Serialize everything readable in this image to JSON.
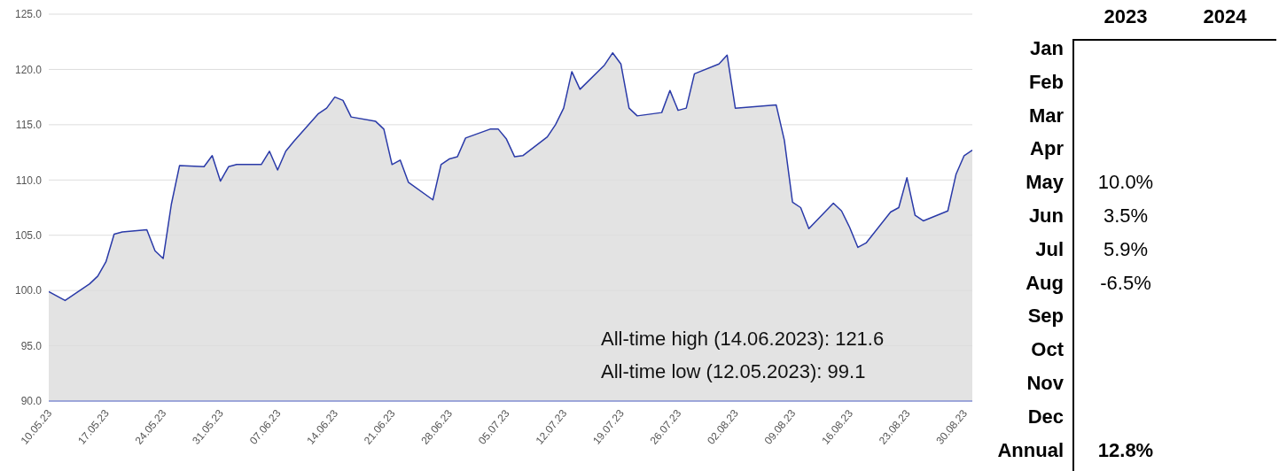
{
  "chart_data": [
    {
      "type": "area",
      "color": "#2a3aa8",
      "x": [
        "2023-05-10",
        "2023-05-12",
        "2023-05-15",
        "2023-05-16",
        "2023-05-17",
        "2023-05-18",
        "2023-05-19",
        "2023-05-22",
        "2023-05-23",
        "2023-05-24",
        "2023-05-25",
        "2023-05-26",
        "2023-05-29",
        "2023-05-30",
        "2023-05-31",
        "2023-06-01",
        "2023-06-02",
        "2023-06-05",
        "2023-06-06",
        "2023-06-07",
        "2023-06-08",
        "2023-06-09",
        "2023-06-12",
        "2023-06-13",
        "2023-06-14",
        "2023-06-15",
        "2023-06-16",
        "2023-06-19",
        "2023-06-20",
        "2023-06-21",
        "2023-06-22",
        "2023-06-23",
        "2023-06-26",
        "2023-06-27",
        "2023-06-28",
        "2023-06-29",
        "2023-06-30",
        "2023-07-03",
        "2023-07-04",
        "2023-07-05",
        "2023-07-06",
        "2023-07-07",
        "2023-07-10",
        "2023-07-11",
        "2023-07-12",
        "2023-07-13",
        "2023-07-14",
        "2023-07-17",
        "2023-07-18",
        "2023-07-19",
        "2023-07-20",
        "2023-07-21",
        "2023-07-24",
        "2023-07-25",
        "2023-07-26",
        "2023-07-27",
        "2023-07-28",
        "2023-07-31",
        "2023-08-01",
        "2023-08-02",
        "2023-08-07",
        "2023-08-08",
        "2023-08-09",
        "2023-08-10",
        "2023-08-11",
        "2023-08-14",
        "2023-08-15",
        "2023-08-16",
        "2023-08-17",
        "2023-08-18",
        "2023-08-21",
        "2023-08-22",
        "2023-08-23",
        "2023-08-24",
        "2023-08-25",
        "2023-08-28",
        "2023-08-29",
        "2023-08-30",
        "2023-08-31"
      ],
      "values": [
        99.9,
        99.1,
        100.6,
        101.3,
        102.6,
        105.1,
        105.3,
        105.5,
        103.6,
        102.9,
        107.8,
        111.3,
        111.2,
        112.2,
        109.9,
        111.2,
        111.4,
        111.4,
        112.6,
        110.9,
        112.6,
        113.5,
        116.0,
        116.5,
        117.5,
        117.2,
        115.7,
        115.3,
        114.6,
        111.4,
        111.8,
        109.8,
        108.2,
        111.4,
        111.9,
        112.1,
        113.8,
        114.6,
        114.6,
        113.7,
        112.1,
        112.2,
        113.9,
        115.0,
        116.5,
        119.8,
        118.2,
        120.4,
        121.5,
        120.5,
        116.5,
        115.8,
        116.1,
        118.1,
        116.3,
        116.5,
        119.6,
        120.5,
        121.3,
        116.5,
        116.8,
        113.6,
        108.0,
        107.5,
        105.6,
        107.9,
        107.2,
        105.7,
        103.9,
        104.3,
        107.1,
        107.5,
        110.2,
        106.8,
        106.3,
        107.2,
        110.5,
        112.2,
        112.7
      ],
      "xlim": [
        "2023-05-10",
        "2023-08-31"
      ],
      "xticks": [
        {
          "value": "2023-05-10",
          "label": "10.05.23"
        },
        {
          "value": "2023-05-17",
          "label": "17.05.23"
        },
        {
          "value": "2023-05-24",
          "label": "24.05.23"
        },
        {
          "value": "2023-05-31",
          "label": "31.05.23"
        },
        {
          "value": "2023-06-07",
          "label": "07.06.23"
        },
        {
          "value": "2023-06-14",
          "label": "14.06.23"
        },
        {
          "value": "2023-06-21",
          "label": "21.06.23"
        },
        {
          "value": "2023-06-28",
          "label": "28.06.23"
        },
        {
          "value": "2023-07-05",
          "label": "05.07.23"
        },
        {
          "value": "2023-07-12",
          "label": "12.07.23"
        },
        {
          "value": "2023-07-19",
          "label": "19.07.23"
        },
        {
          "value": "2023-07-26",
          "label": "26.07.23"
        },
        {
          "value": "2023-08-02",
          "label": "02.08.23"
        },
        {
          "value": "2023-08-09",
          "label": "09.08.23"
        },
        {
          "value": "2023-08-16",
          "label": "16.08.23"
        },
        {
          "value": "2023-08-23",
          "label": "23.08.23"
        },
        {
          "value": "2023-08-30",
          "label": "30.08.23"
        }
      ],
      "ylim": [
        90,
        125
      ],
      "yticks": [
        {
          "value": 90,
          "label": "90.0"
        },
        {
          "value": 95,
          "label": "95.0"
        },
        {
          "value": 100,
          "label": "100.0"
        },
        {
          "value": 105,
          "label": "105.0"
        },
        {
          "value": 110,
          "label": "110.0"
        },
        {
          "value": 115,
          "label": "115.0"
        },
        {
          "value": 120,
          "label": "120.0"
        },
        {
          "value": 125,
          "label": "125.0"
        }
      ],
      "grid": "y",
      "annotations": [
        "All-time high (14.06.2023): 121.6",
        "All-time low (12.05.2023): 99.1"
      ]
    },
    {
      "type": "heatmap",
      "categories": [
        "2023",
        "2024"
      ],
      "y_categories": [
        "Jan",
        "Feb",
        "Mar",
        "Apr",
        "May",
        "Jun",
        "Jul",
        "Aug",
        "Sep",
        "Oct",
        "Nov",
        "Dec",
        "Annual"
      ],
      "cells": [
        [
          null,
          null
        ],
        [
          null,
          null
        ],
        [
          null,
          null
        ],
        [
          null,
          null
        ],
        [
          10.0,
          null
        ],
        [
          3.5,
          null
        ],
        [
          5.9,
          null
        ],
        [
          -6.5,
          null
        ],
        [
          null,
          null
        ],
        [
          null,
          null
        ],
        [
          null,
          null
        ],
        [
          null,
          null
        ],
        [
          12.8,
          null
        ]
      ],
      "cell_labels": [
        [
          null,
          null
        ],
        [
          null,
          null
        ],
        [
          null,
          null
        ],
        [
          null,
          null
        ],
        [
          "10.0%",
          null
        ],
        [
          "3.5%",
          null
        ],
        [
          "5.9%",
          null
        ],
        [
          "-6.5%",
          null
        ],
        [
          null,
          null
        ],
        [
          null,
          null
        ],
        [
          null,
          null
        ],
        [
          null,
          null
        ],
        [
          "12.8%",
          null
        ]
      ]
    }
  ]
}
